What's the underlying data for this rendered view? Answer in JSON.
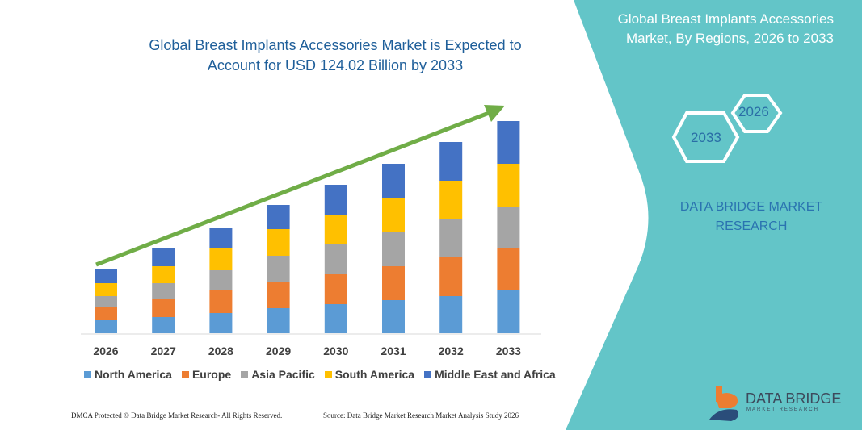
{
  "header": {
    "title": "Global Breast Implants Accessories Market is Expected to Account for USD 124.02 Billion by 2033"
  },
  "side_panel": {
    "title": "Global Breast Implants Accessories Market, By Regions, 2026 to 2033",
    "hex_right": "2026",
    "hex_left": "2033",
    "brand": "DATA BRIDGE MARKET RESEARCH",
    "logo_name": "DATA BRIDGE",
    "logo_sub": "MARKET RESEARCH",
    "bg_color": "#63c5c8"
  },
  "footer": {
    "left": "DMCA Protected © Data Bridge Market Research- All Rights Reserved.",
    "right": "Source: Data Bridge Market Research Market Analysis Study 2026"
  },
  "chart_data": {
    "type": "bar",
    "stacked": true,
    "title": "Global Breast Implants Accessories Market is Expected to Account for USD 124.02 Billion by 2033",
    "xlabel": "",
    "ylabel": "",
    "y_axis_shown": false,
    "grid": false,
    "legend_position": "bottom",
    "trend_arrow": true,
    "categories": [
      "2026",
      "2027",
      "2028",
      "2029",
      "2030",
      "2031",
      "2032",
      "2033"
    ],
    "series": [
      {
        "name": "North America",
        "color": "#5b9bd5",
        "values": [
          16,
          20,
          25,
          31,
          36,
          41,
          46,
          53
        ]
      },
      {
        "name": "Europe",
        "color": "#ed7d31",
        "values": [
          16,
          22,
          28,
          32,
          37,
          42,
          49,
          53
        ]
      },
      {
        "name": "Asia Pacific",
        "color": "#a5a5a5",
        "values": [
          14,
          20,
          25,
          33,
          37,
          43,
          47,
          51
        ]
      },
      {
        "name": "South America",
        "color": "#ffc000",
        "values": [
          16,
          21,
          27,
          33,
          37,
          42,
          47,
          53
        ]
      },
      {
        "name": "Middle East and Africa",
        "color": "#4472c4",
        "values": [
          17,
          22,
          26,
          30,
          37,
          42,
          48,
          53
        ]
      }
    ]
  }
}
